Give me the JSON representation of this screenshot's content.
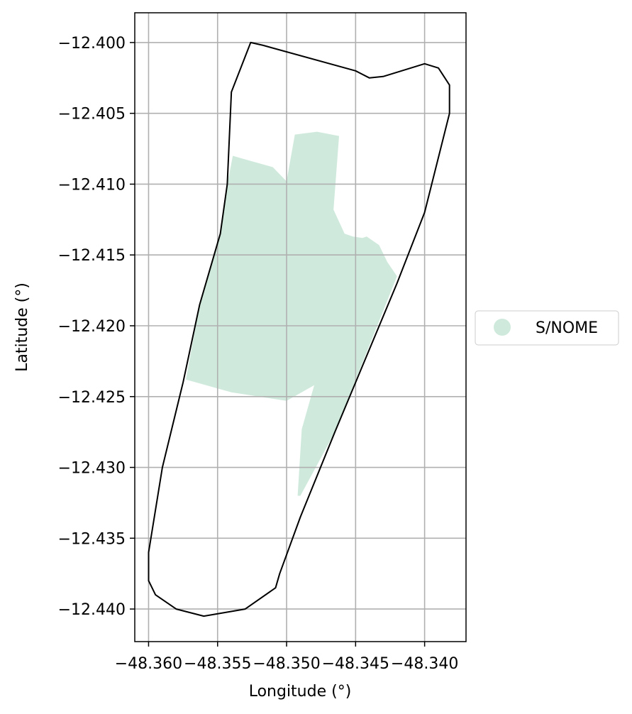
{
  "chart_data": {
    "type": "map",
    "xlabel": "Longitude (°)",
    "ylabel": "Latitude (°)",
    "xlim": [
      -48.361,
      -48.337
    ],
    "ylim": [
      -12.4423,
      -12.3979
    ],
    "xticks": [
      -48.36,
      -48.355,
      -48.35,
      -48.345,
      -48.34
    ],
    "xtick_labels": [
      "−48.360",
      "−48.355",
      "−48.350",
      "−48.345",
      "−48.340"
    ],
    "yticks": [
      -12.4,
      -12.405,
      -12.41,
      -12.415,
      -12.42,
      -12.425,
      -12.43,
      -12.435,
      -12.44
    ],
    "ytick_labels": [
      "−12.400",
      "−12.405",
      "−12.410",
      "−12.415",
      "−12.420",
      "−12.425",
      "−12.430",
      "−12.435",
      "−12.440"
    ],
    "grid": true,
    "legend_position": "right",
    "legend": [
      {
        "label": "S/NOME",
        "color": "#cfeadc"
      }
    ],
    "boundary_color": "#000000",
    "boundary": [
      [
        -48.3526,
        -12.4
      ],
      [
        -48.3517,
        -12.4002
      ],
      [
        -48.345,
        -12.402
      ],
      [
        -48.344,
        -12.4025
      ],
      [
        -48.343,
        -12.4024
      ],
      [
        -48.341,
        -12.4018
      ],
      [
        -48.34,
        -12.4015
      ],
      [
        -48.339,
        -12.4018
      ],
      [
        -48.3382,
        -12.403
      ],
      [
        -48.3382,
        -12.405
      ],
      [
        -48.34,
        -12.412
      ],
      [
        -48.342,
        -12.417
      ],
      [
        -48.3465,
        -12.4275
      ],
      [
        -48.349,
        -12.4335
      ],
      [
        -48.3505,
        -12.4375
      ],
      [
        -48.3508,
        -12.4385
      ],
      [
        -48.353,
        -12.44
      ],
      [
        -48.356,
        -12.4405
      ],
      [
        -48.358,
        -12.44
      ],
      [
        -48.3595,
        -12.439
      ],
      [
        -48.36,
        -12.438
      ],
      [
        -48.36,
        -12.436
      ],
      [
        -48.359,
        -12.43
      ],
      [
        -48.3575,
        -12.424
      ],
      [
        -48.3563,
        -12.4185
      ],
      [
        -48.3548,
        -12.4135
      ],
      [
        -48.3543,
        -12.41
      ],
      [
        -48.354,
        -12.4035
      ],
      [
        -48.3526,
        -12.4
      ]
    ],
    "regions": [
      {
        "label": "S/NOME",
        "color": "#cfeadc",
        "polygon": [
          [
            -48.3539,
            -12.408
          ],
          [
            -48.3532,
            -12.4082
          ],
          [
            -48.351,
            -12.4088
          ],
          [
            -48.35,
            -12.4098
          ],
          [
            -48.3494,
            -12.4065
          ],
          [
            -48.3478,
            -12.4063
          ],
          [
            -48.3462,
            -12.4066
          ],
          [
            -48.3466,
            -12.4118
          ],
          [
            -48.3458,
            -12.4135
          ],
          [
            -48.3452,
            -12.4137
          ],
          [
            -48.3445,
            -12.4138
          ],
          [
            -48.3442,
            -12.4137
          ],
          [
            -48.3433,
            -12.4143
          ],
          [
            -48.3427,
            -12.4155
          ],
          [
            -48.342,
            -12.4165
          ],
          [
            -48.3465,
            -12.4275
          ],
          [
            -48.349,
            -12.432
          ],
          [
            -48.3492,
            -12.432
          ],
          [
            -48.3489,
            -12.4273
          ],
          [
            -48.348,
            -12.4242
          ],
          [
            -48.35,
            -12.4253
          ],
          [
            -48.354,
            -12.4247
          ],
          [
            -48.3573,
            -12.4238
          ],
          [
            -48.3563,
            -12.4185
          ],
          [
            -48.3548,
            -12.4135
          ],
          [
            -48.3543,
            -12.41
          ],
          [
            -48.3539,
            -12.408
          ]
        ]
      }
    ]
  }
}
